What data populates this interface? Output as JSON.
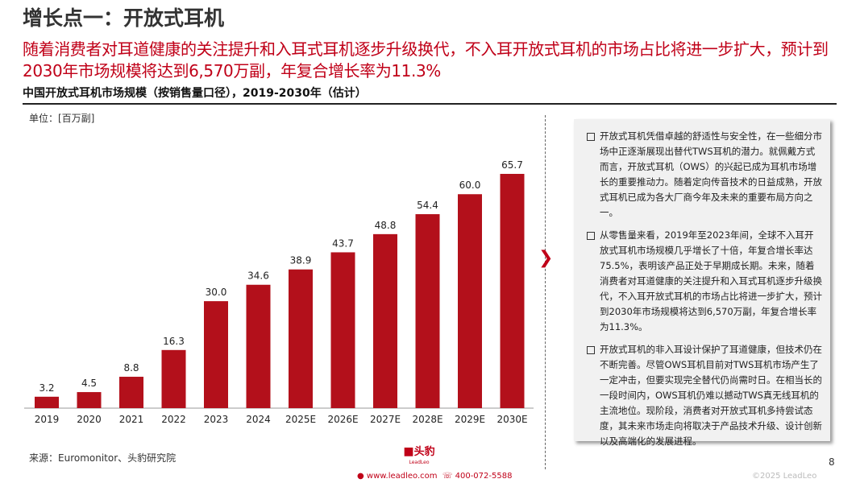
{
  "title": "增长点一：开放式耳机",
  "subtitle": "随着消费者对耳道健康的关注提升和入耳式耳机逐步升级换代，不入耳开放式耳机的市场占比将进一步扩大，预计到2030年市场规模将达到6,570万副，年复合增长率为11.3%",
  "chart_data": {
    "type": "bar",
    "title": "中国开放式耳机市场规模（按销售量口径），2019-2030年（估计）",
    "unit_label": "单位：[百万副]",
    "categories": [
      "2019",
      "2020",
      "2021",
      "2022",
      "2023",
      "2024",
      "2025E",
      "2026E",
      "2027E",
      "2028E",
      "2029E",
      "2030E"
    ],
    "values": [
      3.2,
      4.5,
      8.8,
      16.3,
      30.0,
      34.6,
      38.9,
      43.7,
      48.8,
      54.4,
      60.0,
      65.7
    ],
    "value_labels": [
      "3.2",
      "4.5",
      "8.8",
      "16.3",
      "30.0",
      "34.6",
      "38.9",
      "43.7",
      "48.8",
      "54.4",
      "60.0",
      "65.7"
    ],
    "ylim": [
      0,
      70
    ],
    "grid": false,
    "bar_color": "#b3101b"
  },
  "panel": {
    "bullets": [
      "开放式耳机凭借卓越的舒适性与安全性，在一些细分市场中正逐渐展现出替代TWS耳机的潜力。就佩戴方式而言，开放式耳机（OWS）的兴起已成为耳机市场增长的重要推动力。随着定向传音技术的日益成熟，开放式耳机已成为各大厂商今年及未来的重要布局方向之一。",
      "从零售量来看，2019年至2023年间，全球不入耳开放式耳机市场规模几乎增长了十倍，年复合增长率达75.5%，表明该产品正处于早期成长期。未来，随着消费者对耳道健康的关注提升和入耳式耳机逐步升级换代，不入耳开放式耳机的市场占比将进一步扩大，预计到2030年市场规模将达到6,570万副，年复合增长率为11.3%。",
      "开放式耳机的非入耳设计保护了耳道健康，但技术仍在不断完善。尽管OWS耳机目前对TWS耳机市场产生了一定冲击，但要实现完全替代仍尚需时日。在相当长的一段时间内，OWS耳机仍难以撼动TWS真无线耳机的主流地位。现阶段，消费者对开放式耳机多持尝试态度，其未来市场走向将取决于产品技术升级、设计创新以及高端化的发展进程。"
    ]
  },
  "footer": {
    "source": "来源：Euromonitor、头豹研究院",
    "logo_text": "头豹",
    "logo_sub": "LeadLeo",
    "website": "www.leadleo.com",
    "phone": "400-072-5588",
    "page": "8",
    "copyright": "©2025 LeadLeo"
  },
  "colors": {
    "accent": "#c00018"
  }
}
